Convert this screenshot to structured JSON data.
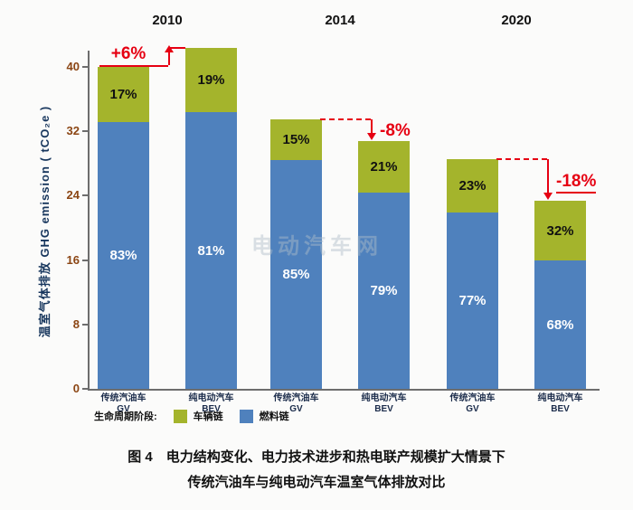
{
  "page": {
    "watermark": "电动汽车网",
    "caption_line1": "图 4　电力结构变化、电力技术进步和热电联产规模扩大情景下",
    "caption_line2": "传统汽油车与纯电动汽车温室气体排放对比"
  },
  "chart_data": {
    "type": "bar",
    "stacked": true,
    "title": "",
    "ylabel": "温室气体排放 GHG emission ( tCO₂e )",
    "xlabel": "",
    "ylim": [
      0,
      44
    ],
    "yticks": [
      0,
      8,
      16,
      24,
      32,
      40
    ],
    "grid": false,
    "legend_position": "bottom",
    "legend": {
      "title": "生命周期阶段:",
      "items": [
        {
          "label": "车辆链",
          "color": "#a4b42c"
        },
        {
          "label": "燃料链",
          "color": "#4f81bd"
        }
      ]
    },
    "colors": {
      "fuel": "#4f81bd",
      "vehicle": "#a4b42c",
      "delta": "#e60012",
      "tick": "#8b4513",
      "axis": "#6d6d6d"
    },
    "groups": [
      {
        "year": "2010",
        "delta": {
          "text": "+6%",
          "direction": "up"
        },
        "bars": [
          {
            "label_line1": "传统汽油车",
            "label_line2": "GV",
            "total": 40.0,
            "fuel_pct": 83,
            "vehicle_pct": 17
          },
          {
            "label_line1": "纯电动汽车",
            "label_line2": "BEV",
            "total": 42.4,
            "fuel_pct": 81,
            "vehicle_pct": 19
          }
        ]
      },
      {
        "year": "2014",
        "delta": {
          "text": "-8%",
          "direction": "down"
        },
        "bars": [
          {
            "label_line1": "传统汽油车",
            "label_line2": "GV",
            "total": 33.5,
            "fuel_pct": 85,
            "vehicle_pct": 15
          },
          {
            "label_line1": "纯电动汽车",
            "label_line2": "BEV",
            "total": 30.8,
            "fuel_pct": 79,
            "vehicle_pct": 21
          }
        ]
      },
      {
        "year": "2020",
        "delta": {
          "text": "-18%",
          "direction": "down"
        },
        "bars": [
          {
            "label_line1": "传统汽油车",
            "label_line2": "GV",
            "total": 28.5,
            "fuel_pct": 77,
            "vehicle_pct": 23
          },
          {
            "label_line1": "纯电动汽车",
            "label_line2": "BEV",
            "total": 23.4,
            "fuel_pct": 68,
            "vehicle_pct": 32
          }
        ]
      }
    ]
  }
}
